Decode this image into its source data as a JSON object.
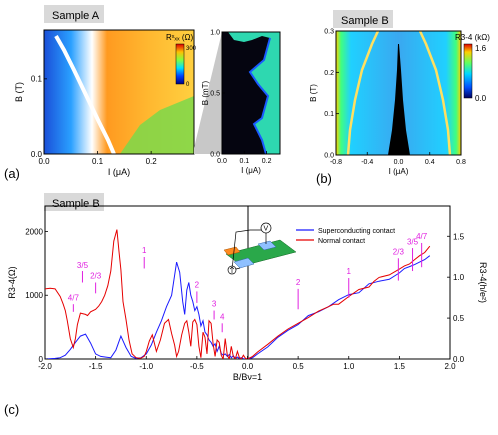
{
  "panels": [
    {
      "id": "a",
      "title": "Sample A",
      "panel_label": "(a)",
      "colorbar": {
        "label": "Rˣₓₓ (Ω)",
        "max_label": "300",
        "min_label": "0"
      }
    },
    {
      "id": "b",
      "title": "Sample B",
      "panel_label": "(b)",
      "colorbar": {
        "label": "R3-4 (kΩ)",
        "max_label": "1.6",
        "min_label": "0.0"
      }
    },
    {
      "id": "c",
      "title": "Sample B",
      "panel_label": "(c)"
    }
  ],
  "chart_data": [
    {
      "id": "a-main",
      "type": "heatmap",
      "xlabel": "I (μA)",
      "ylabel": "B (T)",
      "xlim": [
        0.0,
        0.28
      ],
      "ylim": [
        0.0,
        0.165
      ],
      "xticks": [
        "0.0",
        "0.1",
        "0.2"
      ],
      "yticks": [
        "0.0",
        "0.1"
      ],
      "critical_current_edge": {
        "B": [
          0.0,
          0.04,
          0.08,
          0.12,
          0.16
        ],
        "I": [
          0.1,
          0.08,
          0.06,
          0.035,
          0.02
        ]
      }
    },
    {
      "id": "a-inset",
      "type": "heatmap",
      "xlabel": "I (μA)",
      "ylabel": "B (mT)",
      "xlim": [
        0.0,
        0.26
      ],
      "ylim": [
        0.0,
        1.0
      ],
      "xticks": [
        "0.0",
        "0.1",
        "0.2"
      ],
      "yticks": [
        "0.0",
        "0.5",
        "1.0"
      ],
      "critical_current_edge": {
        "B": [
          0.0,
          0.1,
          0.2,
          0.3,
          0.35,
          0.4,
          0.5,
          0.6,
          0.65,
          0.7,
          0.8,
          0.9,
          1.0
        ],
        "I": [
          0.15,
          0.14,
          0.1,
          0.02,
          0.06,
          0.11,
          0.13,
          0.08,
          0.03,
          0.08,
          0.12,
          0.11,
          0.05
        ]
      }
    },
    {
      "id": "b-main",
      "type": "heatmap",
      "xlabel": "I (μA)",
      "ylabel": "B (T)",
      "xlim": [
        -0.8,
        0.8
      ],
      "ylim": [
        0.0,
        0.3
      ],
      "xticks": [
        "-0.8",
        "-0.4",
        "0.0",
        "0.4",
        "0.8"
      ],
      "yticks": [
        "0.0",
        "0.1",
        "0.2",
        "0.3"
      ],
      "critical_current_edge": {
        "B": [
          0.0,
          0.05,
          0.1,
          0.15,
          0.2,
          0.25,
          0.3
        ],
        "I": [
          0.12,
          0.09,
          0.06,
          0.05,
          0.03,
          0.02,
          0.01
        ]
      }
    },
    {
      "id": "c-main",
      "type": "line",
      "xlabel": "B/Bν=1",
      "ylabel": "R3-4(Ω)",
      "ylabel_right": "R3-4(h/e²)",
      "xlim": [
        -2.0,
        2.0
      ],
      "ylim": [
        0,
        2400
      ],
      "ylim_right": [
        0,
        1.87
      ],
      "xticks": [
        "-2.0",
        "-1.5",
        "-1.0",
        "-0.5",
        "0.0",
        "0.5",
        "1.0",
        "1.5",
        "2.0"
      ],
      "yticks": [
        "0",
        "1000",
        "2000"
      ],
      "yticks_right": [
        "0.0",
        "0.5",
        "1.0",
        "1.5"
      ],
      "legend": {
        "position": "top-center",
        "entries": [
          "Superconducting contact",
          "Normal contact"
        ]
      },
      "series": [
        {
          "name": "Superconducting contact",
          "color": "#1a1aff",
          "x": [
            -2.0,
            -1.9,
            -1.85,
            -1.8,
            -1.75,
            -1.7,
            -1.65,
            -1.6,
            -1.55,
            -1.5,
            -1.45,
            -1.4,
            -1.35,
            -1.3,
            -1.25,
            -1.2,
            -1.15,
            -1.1,
            -1.05,
            -1.0,
            -0.95,
            -0.9,
            -0.85,
            -0.8,
            -0.75,
            -0.7,
            -0.67,
            -0.64,
            -0.62,
            -0.6,
            -0.58,
            -0.56,
            -0.54,
            -0.52,
            -0.5,
            -0.48,
            -0.46,
            -0.44,
            -0.42,
            -0.4,
            -0.38,
            -0.36,
            -0.34,
            -0.32,
            -0.3,
            -0.28,
            -0.26,
            -0.24,
            -0.22,
            -0.2,
            -0.18,
            -0.16,
            -0.14,
            -0.12,
            -0.1,
            -0.08,
            -0.06,
            -0.04,
            -0.02,
            0.0,
            0.05,
            0.1,
            0.2,
            0.3,
            0.4,
            0.5,
            0.6,
            0.7,
            0.8,
            0.9,
            1.0,
            1.1,
            1.2,
            1.3,
            1.4,
            1.5,
            1.55,
            1.6,
            1.65,
            1.7,
            1.75,
            1.8
          ],
          "y": [
            0,
            10,
            20,
            60,
            150,
            260,
            360,
            390,
            250,
            80,
            40,
            30,
            20,
            140,
            360,
            180,
            40,
            10,
            20,
            80,
            220,
            420,
            600,
            820,
            1000,
            1520,
            1360,
            900,
            700,
            1080,
            1200,
            1000,
            900,
            760,
            820,
            700,
            520,
            600,
            420,
            380,
            300,
            260,
            200,
            240,
            120,
            200,
            90,
            60,
            80,
            40,
            70,
            20,
            50,
            10,
            30,
            10,
            20,
            5,
            0,
            0,
            20,
            80,
            190,
            340,
            450,
            540,
            680,
            740,
            820,
            930,
            1010,
            1040,
            1180,
            1220,
            1250,
            1350,
            1420,
            1450,
            1480,
            1520,
            1560,
            1620
          ]
        },
        {
          "name": "Normal contact",
          "color": "#e60000",
          "x": [
            -2.0,
            -1.95,
            -1.9,
            -1.85,
            -1.82,
            -1.8,
            -1.78,
            -1.75,
            -1.72,
            -1.7,
            -1.68,
            -1.65,
            -1.6,
            -1.58,
            -1.55,
            -1.5,
            -1.47,
            -1.44,
            -1.41,
            -1.38,
            -1.35,
            -1.32,
            -1.29,
            -1.27,
            -1.25,
            -1.23,
            -1.2,
            -1.17,
            -1.14,
            -1.1,
            -1.06,
            -1.02,
            -1.0,
            -0.97,
            -0.94,
            -0.9,
            -0.86,
            -0.82,
            -0.78,
            -0.75,
            -0.72,
            -0.7,
            -0.68,
            -0.65,
            -0.62,
            -0.6,
            -0.58,
            -0.56,
            -0.54,
            -0.52,
            -0.5,
            -0.48,
            -0.46,
            -0.44,
            -0.42,
            -0.4,
            -0.38,
            -0.36,
            -0.34,
            -0.32,
            -0.3,
            -0.28,
            -0.26,
            -0.24,
            -0.22,
            -0.2,
            -0.18,
            -0.16,
            -0.14,
            -0.12,
            -0.1,
            -0.08,
            -0.06,
            -0.04,
            -0.02,
            0.0,
            0.05,
            0.1,
            0.2,
            0.3,
            0.4,
            0.5,
            0.6,
            0.7,
            0.8,
            0.85,
            0.9,
            1.0,
            1.1,
            1.2,
            1.25,
            1.3,
            1.4,
            1.5,
            1.55,
            1.6,
            1.65,
            1.7,
            1.75,
            1.8
          ],
          "y": [
            1100,
            1110,
            1100,
            980,
            860,
            760,
            600,
            320,
            180,
            320,
            540,
            720,
            700,
            680,
            740,
            780,
            830,
            900,
            1000,
            1150,
            1380,
            1850,
            2030,
            1700,
            1400,
            900,
            620,
            300,
            80,
            20,
            10,
            40,
            120,
            280,
            380,
            120,
            300,
            560,
            620,
            400,
            220,
            40,
            120,
            380,
            560,
            600,
            420,
            200,
            580,
            620,
            540,
            200,
            20,
            420,
            340,
            80,
            600,
            560,
            240,
            40,
            300,
            260,
            60,
            0,
            320,
            60,
            0,
            200,
            40,
            0,
            120,
            20,
            0,
            60,
            10,
            0,
            40,
            110,
            230,
            360,
            470,
            560,
            650,
            750,
            820,
            860,
            860,
            980,
            1090,
            1130,
            1220,
            1280,
            1320,
            1410,
            1460,
            1490,
            1560,
            1620,
            1670,
            1770
          ]
        }
      ],
      "annotations": [
        "4/7",
        "3/5",
        "2/3",
        "1",
        "2",
        "3",
        "4",
        "2",
        "1",
        "2/3",
        "3/5",
        "4/7"
      ]
    }
  ]
}
